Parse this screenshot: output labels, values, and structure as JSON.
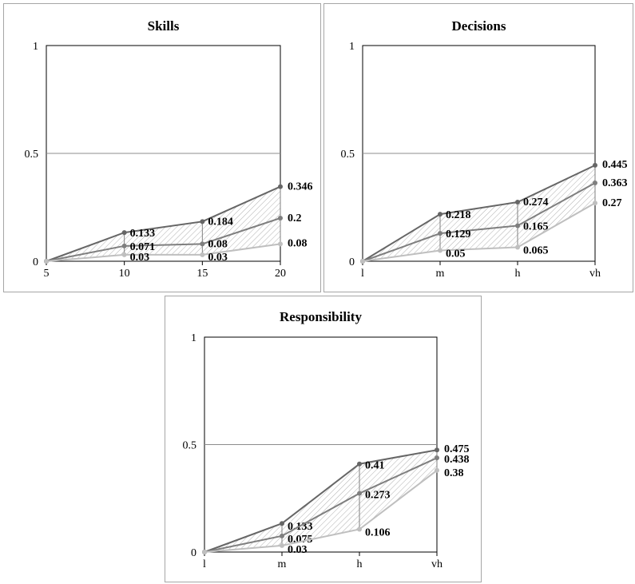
{
  "chart_data": [
    {
      "type": "line",
      "title": "Skills",
      "categories": [
        "5",
        "10",
        "15",
        "20"
      ],
      "ylim": [
        0,
        1
      ],
      "yticks": [
        "0",
        "0.5",
        "1"
      ],
      "grid": true,
      "legend": "none",
      "series": [
        {
          "values": [
            0,
            0.133,
            0.184,
            0.346
          ],
          "color": "#666666",
          "labels": [
            "",
            "0.133",
            "0.184",
            "0.346"
          ]
        },
        {
          "values": [
            0,
            0.071,
            0.08,
            0.2
          ],
          "color": "#7f7f7f",
          "labels": [
            "",
            "0.071",
            "0.08",
            "0.2"
          ]
        },
        {
          "values": [
            0,
            0.03,
            0.03,
            0.08
          ],
          "color": "#bfbfbf",
          "labels": [
            "",
            "0.03",
            "0.03",
            "0.08"
          ]
        }
      ]
    },
    {
      "type": "line",
      "title": "Decisions",
      "categories": [
        "l",
        "m",
        "h",
        "vh"
      ],
      "ylim": [
        0,
        1
      ],
      "yticks": [
        "0",
        "0.5",
        "1"
      ],
      "grid": true,
      "legend": "none",
      "series": [
        {
          "values": [
            0,
            0.218,
            0.274,
            0.445
          ],
          "color": "#666666",
          "labels": [
            "",
            "0.218",
            "0.274",
            "0.445"
          ]
        },
        {
          "values": [
            0,
            0.129,
            0.165,
            0.363
          ],
          "color": "#7f7f7f",
          "labels": [
            "",
            "0.129",
            "0.165",
            "0.363"
          ]
        },
        {
          "values": [
            0,
            0.05,
            0.065,
            0.27
          ],
          "color": "#bfbfbf",
          "labels": [
            "",
            "0.05",
            "0.065",
            "0.27"
          ]
        }
      ]
    },
    {
      "type": "line",
      "title": "Responsibility",
      "categories": [
        "l",
        "m",
        "h",
        "vh"
      ],
      "ylim": [
        0,
        1
      ],
      "yticks": [
        "0",
        "0.5",
        "1"
      ],
      "grid": true,
      "legend": "none",
      "series": [
        {
          "values": [
            0,
            0.133,
            0.41,
            0.475
          ],
          "color": "#666666",
          "labels": [
            "",
            "0.133",
            "0.41",
            "0.475"
          ]
        },
        {
          "values": [
            0,
            0.075,
            0.273,
            0.438
          ],
          "color": "#7f7f7f",
          "labels": [
            "",
            "0.075",
            "0.273",
            "0.438"
          ]
        },
        {
          "values": [
            0,
            0.03,
            0.106,
            0.38
          ],
          "color": "#bfbfbf",
          "labels": [
            "",
            "0.03",
            "0.106",
            "0.38"
          ]
        }
      ]
    }
  ]
}
